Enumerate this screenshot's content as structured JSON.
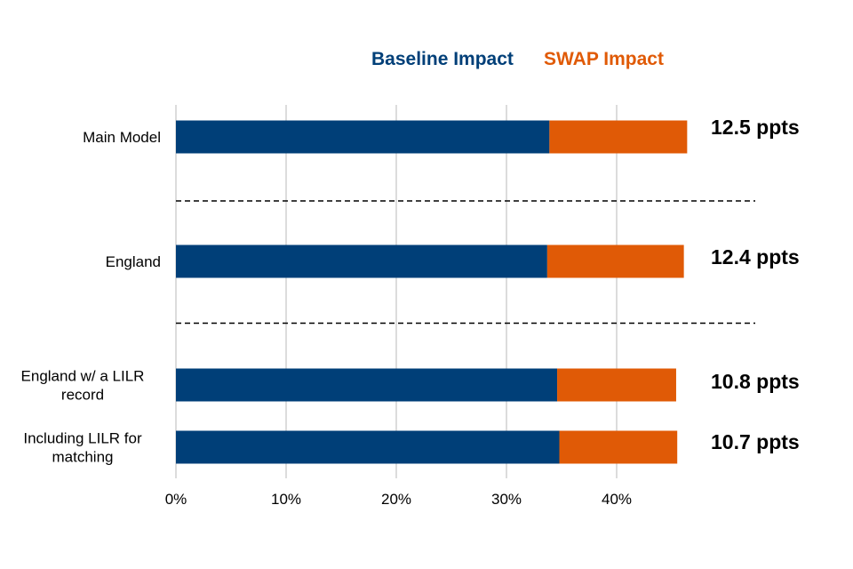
{
  "chart_data": {
    "type": "bar",
    "orientation": "horizontal",
    "stacked": true,
    "title": "",
    "xlabel": "",
    "ylabel": "",
    "xlim": [
      0,
      52
    ],
    "x_ticks": [
      0,
      10,
      20,
      30,
      40
    ],
    "x_tick_labels": [
      "0%",
      "10%",
      "20%",
      "30%",
      "40%"
    ],
    "grid": true,
    "legend_position": "top",
    "categories": [
      [
        "Main Model"
      ],
      [
        "England"
      ],
      [
        "England w/ a LILR",
        "record"
      ],
      [
        "Including LILR for",
        "matching"
      ]
    ],
    "series": [
      {
        "name": "Baseline Impact",
        "color": "#003f78",
        "values": [
          33.9,
          33.7,
          34.6,
          34.8
        ]
      },
      {
        "name": "SWAP Impact",
        "color": "#e05a06",
        "values": [
          12.5,
          12.4,
          10.8,
          10.7
        ]
      }
    ],
    "data_labels": [
      "12.5 ppts",
      "12.4 ppts",
      "10.8 ppts",
      "10.7 ppts"
    ],
    "separators_after": [
      0,
      1
    ]
  }
}
